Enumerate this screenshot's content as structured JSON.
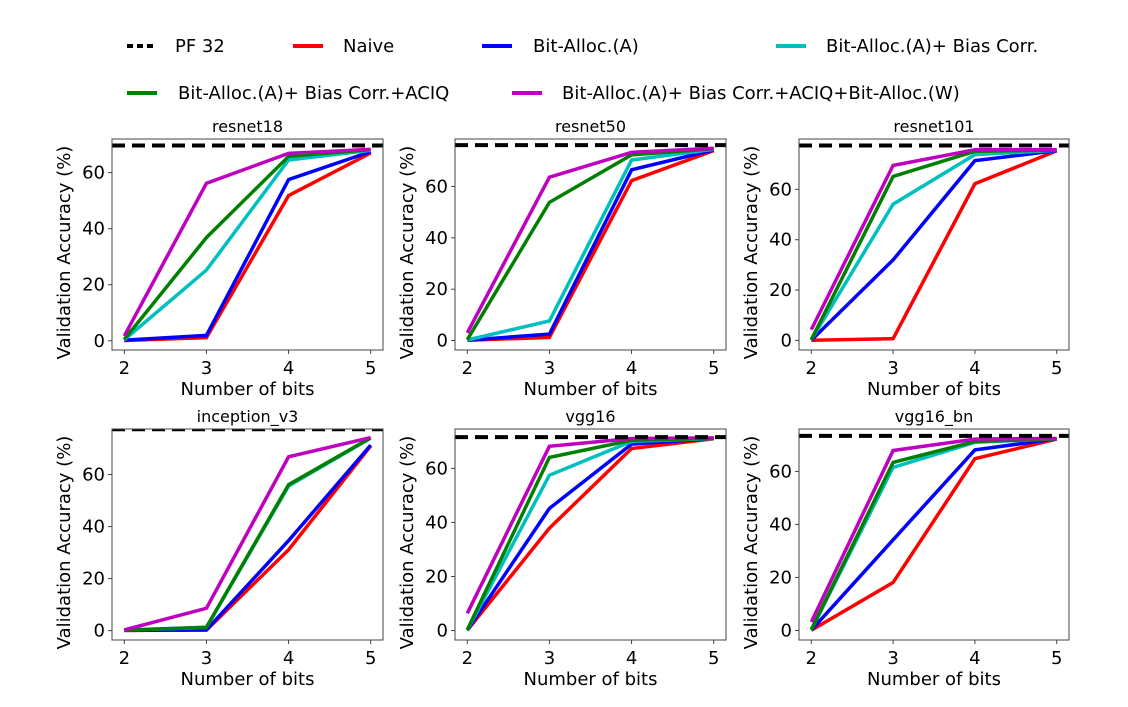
{
  "legend": [
    {
      "label": "PF 32",
      "color": "#000000",
      "style": "dashed"
    },
    {
      "label": "Naive",
      "color": "#ff0000",
      "style": "solid"
    },
    {
      "label": "Bit-Alloc.(A)",
      "color": "#0000ff",
      "style": "solid"
    },
    {
      "label": "Bit-Alloc.(A)+ Bias Corr.",
      "color": "#00bfbf",
      "style": "solid"
    },
    {
      "label": "Bit-Alloc.(A)+ Bias Corr.+ACIQ",
      "color": "#008000",
      "style": "solid"
    },
    {
      "label": "Bit-Alloc.(A)+ Bias Corr.+ACIQ+Bit-Alloc.(W)",
      "color": "#bf00bf",
      "style": "solid"
    }
  ],
  "chart_data": [
    {
      "type": "line",
      "title": "resnet18",
      "xlabel": "Number of bits",
      "ylabel": "Validation Accuracy (%)",
      "x": [
        2,
        3,
        4,
        5
      ],
      "xticks": [
        "2",
        "3",
        "4",
        "5"
      ],
      "yticks": [
        0,
        20,
        40,
        60
      ],
      "ylim": [
        -3.3,
        72
      ],
      "xlim": [
        1.85,
        5.15
      ],
      "pf32": 69.7,
      "series": [
        {
          "name": "Naive",
          "values": [
            0.1,
            1.1,
            51.8,
            67.0
          ]
        },
        {
          "name": "Bit-Alloc.(A)",
          "values": [
            0.2,
            1.9,
            57.5,
            67.5
          ]
        },
        {
          "name": "Bit-Alloc.(A)+ Bias Corr.",
          "values": [
            0.3,
            25.2,
            64.5,
            68.0
          ]
        },
        {
          "name": "Bit-Alloc.(A)+ Bias Corr.+ACIQ",
          "values": [
            0.5,
            36.8,
            65.8,
            68.2
          ]
        },
        {
          "name": "Bit-Alloc.(A)+ Bias Corr.+ACIQ+Bit-Alloc.(W)",
          "values": [
            1.7,
            56.2,
            66.9,
            68.3
          ]
        }
      ]
    },
    {
      "type": "line",
      "title": "resnet50",
      "xlabel": "Number of bits",
      "ylabel": "Validation Accuracy (%)",
      "x": [
        2,
        3,
        4,
        5
      ],
      "xticks": [
        "2",
        "3",
        "4",
        "5"
      ],
      "yticks": [
        0,
        20,
        40,
        60
      ],
      "ylim": [
        -3.7,
        78.5
      ],
      "xlim": [
        1.85,
        5.15
      ],
      "pf32": 76.1,
      "series": [
        {
          "name": "Naive",
          "values": [
            0.1,
            1.2,
            62.3,
            74.0
          ]
        },
        {
          "name": "Bit-Alloc.(A)",
          "values": [
            0.1,
            2.5,
            66.5,
            74.2
          ]
        },
        {
          "name": "Bit-Alloc.(A)+ Bias Corr.",
          "values": [
            0.2,
            7.6,
            70.3,
            74.5
          ]
        },
        {
          "name": "Bit-Alloc.(A)+ Bias Corr.+ACIQ",
          "values": [
            0.3,
            53.8,
            72.3,
            74.7
          ]
        },
        {
          "name": "Bit-Alloc.(A)+ Bias Corr.+ACIQ+Bit-Alloc.(W)",
          "values": [
            3.0,
            63.6,
            73.3,
            74.9
          ]
        }
      ]
    },
    {
      "type": "line",
      "title": "resnet101",
      "xlabel": "Number of bits",
      "ylabel": "Validation Accuracy (%)",
      "x": [
        2,
        3,
        4,
        5
      ],
      "xticks": [
        "2",
        "3",
        "4",
        "5"
      ],
      "yticks": [
        0,
        20,
        40,
        60
      ],
      "ylim": [
        -3.8,
        80
      ],
      "xlim": [
        1.85,
        5.15
      ],
      "pf32": 77.4,
      "series": [
        {
          "name": "Naive",
          "values": [
            0.1,
            0.7,
            62.2,
            75.3
          ]
        },
        {
          "name": "Bit-Alloc.(A)",
          "values": [
            0.1,
            32.0,
            71.4,
            75.4
          ]
        },
        {
          "name": "Bit-Alloc.(A)+ Bias Corr.",
          "values": [
            0.2,
            54.1,
            73.8,
            75.5
          ]
        },
        {
          "name": "Bit-Alloc.(A)+ Bias Corr.+ACIQ",
          "values": [
            0.3,
            65.1,
            75.1,
            75.6
          ]
        },
        {
          "name": "Bit-Alloc.(A)+ Bias Corr.+ACIQ+Bit-Alloc.(W)",
          "values": [
            4.3,
            69.5,
            75.7,
            75.7
          ]
        }
      ]
    },
    {
      "type": "line",
      "title": "inception_v3",
      "xlabel": "Number of bits",
      "ylabel": "Validation Accuracy (%)",
      "x": [
        2,
        3,
        4,
        5
      ],
      "xticks": [
        "2",
        "3",
        "4",
        "5"
      ],
      "yticks": [
        0,
        20,
        40,
        60
      ],
      "ylim": [
        -3.6,
        77.5
      ],
      "xlim": [
        1.85,
        5.15
      ],
      "pf32": 77.4,
      "series": [
        {
          "name": "Naive",
          "values": [
            0.1,
            0.2,
            31.1,
            71.0
          ]
        },
        {
          "name": "Bit-Alloc.(A)",
          "values": [
            0.1,
            0.3,
            34.6,
            71.3
          ]
        },
        {
          "name": "Bit-Alloc.(A)+ Bias Corr.",
          "values": [
            0.2,
            1.2,
            55.6,
            74.0
          ]
        },
        {
          "name": "Bit-Alloc.(A)+ Bias Corr.+ACIQ",
          "values": [
            0.2,
            1.3,
            56.1,
            74.1
          ]
        },
        {
          "name": "Bit-Alloc.(A)+ Bias Corr.+ACIQ+Bit-Alloc.(W)",
          "values": [
            0.3,
            8.6,
            66.8,
            74.2
          ]
        }
      ]
    },
    {
      "type": "line",
      "title": "vgg16",
      "xlabel": "Number of bits",
      "ylabel": "Validation Accuracy (%)",
      "x": [
        2,
        3,
        4,
        5
      ],
      "xticks": [
        "2",
        "3",
        "4",
        "5"
      ],
      "yticks": [
        0,
        20,
        40,
        60
      ],
      "ylim": [
        -3.5,
        74.6
      ],
      "xlim": [
        1.85,
        5.15
      ],
      "pf32": 71.6,
      "series": [
        {
          "name": "Naive",
          "values": [
            0.1,
            37.9,
            67.4,
            71.0
          ]
        },
        {
          "name": "Bit-Alloc.(A)",
          "values": [
            0.1,
            45.2,
            69.0,
            71.1
          ]
        },
        {
          "name": "Bit-Alloc.(A)+ Bias Corr.",
          "values": [
            0.2,
            57.5,
            70.0,
            71.1
          ]
        },
        {
          "name": "Bit-Alloc.(A)+ Bias Corr.+ACIQ",
          "values": [
            0.3,
            64.1,
            70.4,
            71.2
          ]
        },
        {
          "name": "Bit-Alloc.(A)+ Bias Corr.+ACIQ+Bit-Alloc.(W)",
          "values": [
            6.4,
            68.2,
            71.1,
            71.3
          ]
        }
      ]
    },
    {
      "type": "line",
      "title": "vgg16_bn",
      "xlabel": "Number of bits",
      "ylabel": "Validation Accuracy (%)",
      "x": [
        2,
        3,
        4,
        5
      ],
      "xticks": [
        "2",
        "3",
        "4",
        "5"
      ],
      "yticks": [
        0,
        20,
        40,
        60
      ],
      "ylim": [
        -3.6,
        76
      ],
      "xlim": [
        1.85,
        5.15
      ],
      "pf32": 73.4,
      "series": [
        {
          "name": "Naive",
          "values": [
            0.1,
            18.1,
            64.8,
            72.2
          ]
        },
        {
          "name": "Bit-Alloc.(A)",
          "values": [
            0.1,
            34.2,
            68.1,
            72.3
          ]
        },
        {
          "name": "Bit-Alloc.(A)+ Bias Corr.",
          "values": [
            0.2,
            61.5,
            71.0,
            72.3
          ]
        },
        {
          "name": "Bit-Alloc.(A)+ Bias Corr.+ACIQ",
          "values": [
            0.3,
            63.4,
            71.3,
            72.3
          ]
        },
        {
          "name": "Bit-Alloc.(A)+ Bias Corr.+ACIQ+Bit-Alloc.(W)",
          "values": [
            3.2,
            67.9,
            72.2,
            72.4
          ]
        }
      ]
    }
  ]
}
